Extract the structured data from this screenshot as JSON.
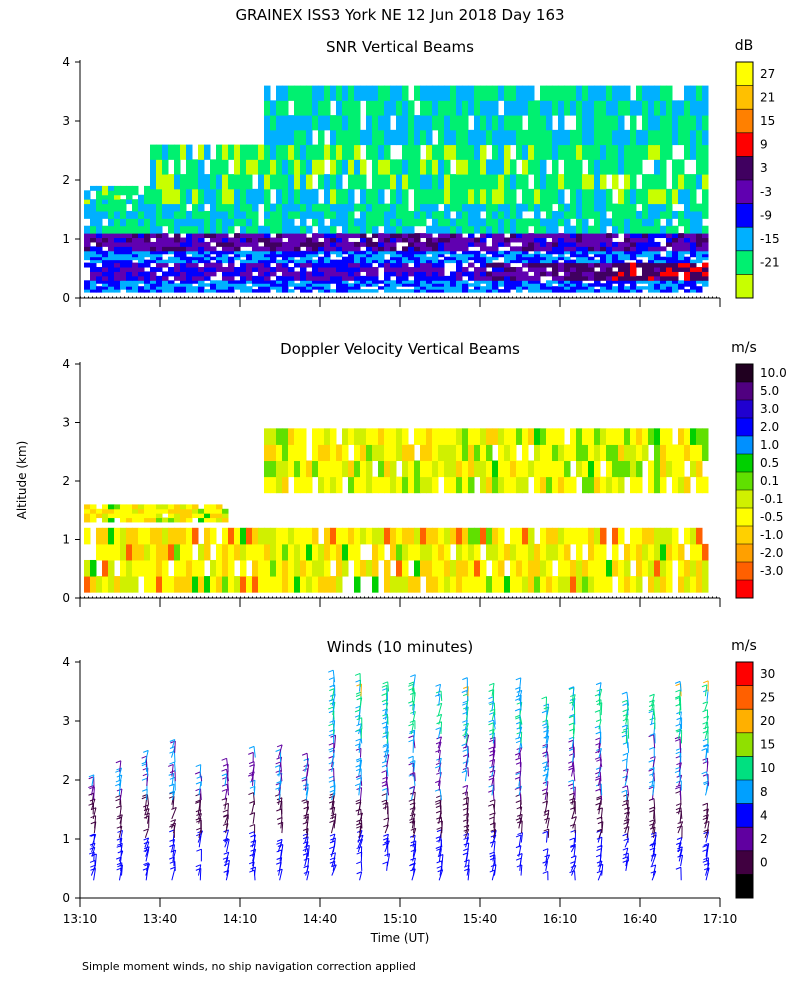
{
  "figure": {
    "title": "GRAINEX ISS3 York NE  12 Jun 2018 Day 163",
    "footer": "Simple moment winds, no ship navigation correction applied",
    "ylabel": "Altitude (km)",
    "xlabel": "Time (UT)"
  },
  "chart_data": [
    {
      "type": "heatmap",
      "title": "SNR Vertical Beams",
      "x_ticks": [
        "13:10",
        "13:40",
        "14:10",
        "14:40",
        "15:10",
        "15:40",
        "16:10",
        "16:40",
        "17:10"
      ],
      "y_ticks": [
        "0",
        "1",
        "2",
        "3",
        "4"
      ],
      "ylim": [
        0,
        4
      ],
      "colorbar": {
        "unit": "dB",
        "labels": [
          "27",
          "21",
          "15",
          "9",
          "3",
          "-3",
          "-9",
          "-15",
          "-21"
        ],
        "colors": [
          "#ffff00",
          "#ffc000",
          "#ff8000",
          "#ff0000",
          "#400060",
          "#6000b0",
          "#0000ff",
          "#00b0ff",
          "#00f070",
          "#c8ff00"
        ]
      },
      "layers": [
        {
          "alt_from": 0.1,
          "alt_to": 0.3,
          "value": -9
        },
        {
          "alt_from": 0.3,
          "alt_to": 0.6,
          "value": -3
        },
        {
          "alt_from": 0.6,
          "alt_to": 0.8,
          "value": -9
        },
        {
          "alt_from": 0.8,
          "alt_to": 1.1,
          "value": 0
        },
        {
          "alt_from": 1.1,
          "alt_to": 1.6,
          "value": -15
        },
        {
          "alt_from": 1.6,
          "alt_to": 2.6,
          "value": -18
        },
        {
          "alt_from": 2.6,
          "alt_to": 3.6,
          "value": -15
        }
      ]
    },
    {
      "type": "heatmap",
      "title": "Doppler Velocity Vertical Beams",
      "x_ticks": [
        "13:10",
        "13:40",
        "14:10",
        "14:40",
        "15:10",
        "15:40",
        "16:10",
        "16:40",
        "17:10"
      ],
      "y_ticks": [
        "0",
        "1",
        "2",
        "3",
        "4"
      ],
      "ylim": [
        0,
        4
      ],
      "colorbar": {
        "unit": "m/s",
        "labels": [
          "10.0",
          "5.0",
          "3.0",
          "2.0",
          "1.0",
          "0.5",
          "0.1",
          "-0.1",
          "-0.5",
          "-1.0",
          "-2.0",
          "-3.0"
        ],
        "colors": [
          "#200020",
          "#500080",
          "#2000d0",
          "#0000ff",
          "#0090ff",
          "#00d000",
          "#60e000",
          "#d0f000",
          "#ffff00",
          "#ffd000",
          "#ffa000",
          "#ff6000",
          "#ff0000"
        ]
      },
      "layers": [
        {
          "alt_from": 0.1,
          "alt_to": 1.2,
          "value": -0.3
        },
        {
          "alt_from": 1.3,
          "alt_to": 1.6,
          "value": -0.3
        },
        {
          "alt_from": 1.8,
          "alt_to": 2.9,
          "value": -0.2
        }
      ]
    },
    {
      "type": "scatter",
      "title": "Winds (10 minutes)",
      "x_ticks": [
        "13:10",
        "13:40",
        "14:10",
        "14:40",
        "15:10",
        "15:40",
        "16:10",
        "16:40",
        "17:10"
      ],
      "y_ticks": [
        "0",
        "1",
        "2",
        "3",
        "4"
      ],
      "ylim": [
        0,
        4
      ],
      "colorbar": {
        "unit": "m/s",
        "labels": [
          "30",
          "25",
          "20",
          "15",
          "10",
          "8",
          "4",
          "2",
          "0"
        ],
        "colors": [
          "#ff0000",
          "#ff6000",
          "#ffb000",
          "#90e000",
          "#00e080",
          "#00a0ff",
          "#0000ff",
          "#6000a0",
          "#400040",
          "#000000"
        ]
      },
      "profile_times": [
        "13:15",
        "13:25",
        "13:35",
        "13:45",
        "13:55",
        "14:05",
        "14:15",
        "14:25",
        "14:35",
        "14:45",
        "14:55",
        "15:05",
        "15:15",
        "15:25",
        "15:35",
        "15:45",
        "15:55",
        "16:05",
        "16:15",
        "16:25",
        "16:35",
        "16:45",
        "16:55",
        "17:05"
      ],
      "barb_style": "wind barbs"
    }
  ]
}
